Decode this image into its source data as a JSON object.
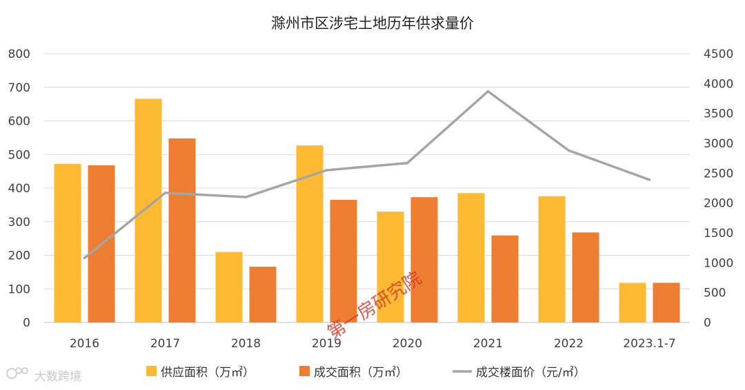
{
  "chart_data": {
    "type": "bar",
    "title": "滁州市区涉宅土地历年供求量价",
    "categories": [
      "2016",
      "2017",
      "2018",
      "2019",
      "2020",
      "2021",
      "2022",
      "2023.1-7"
    ],
    "series": [
      {
        "name": "供应面积（万㎡）",
        "type": "bar",
        "axis": "left",
        "color": "#FDBA32",
        "values": [
          472,
          666,
          210,
          527,
          330,
          385,
          376,
          118
        ]
      },
      {
        "name": "成交面积（万㎡）",
        "type": "bar",
        "axis": "left",
        "color": "#ED7D31",
        "values": [
          468,
          548,
          166,
          365,
          373,
          259,
          268,
          118
        ]
      },
      {
        "name": "成交楼面价（元/㎡）",
        "type": "line",
        "axis": "right",
        "color": "#A5A5A5",
        "values": [
          1080,
          2170,
          2100,
          2550,
          2670,
          3870,
          2880,
          2390
        ]
      }
    ],
    "y_left": {
      "min": 0,
      "max": 800,
      "step": 100,
      "ticks": [
        "0",
        "100",
        "200",
        "300",
        "400",
        "500",
        "600",
        "700",
        "800"
      ]
    },
    "y_right": {
      "min": 0,
      "max": 4500,
      "step": 500,
      "ticks": [
        "0",
        "500",
        "1000",
        "1500",
        "2000",
        "2500",
        "3000",
        "3500",
        "4000",
        "4500"
      ]
    },
    "grid": true,
    "legend_position": "bottom"
  },
  "watermark": {
    "text": "大数跨境",
    "logo": "ie-logo-icon"
  },
  "stamp": {
    "text": "第一房研究院"
  }
}
